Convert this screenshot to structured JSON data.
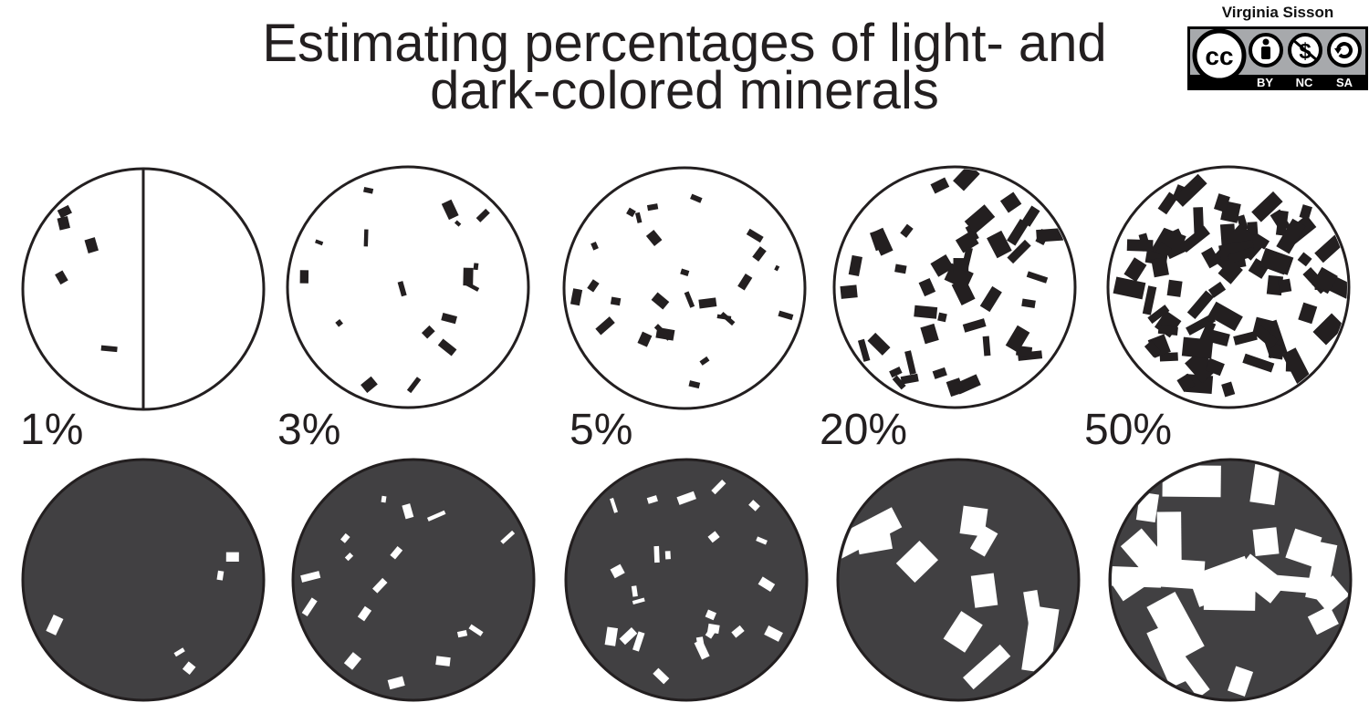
{
  "title": {
    "line1": "Estimating percentages of light- and",
    "line2": "dark-colored minerals"
  },
  "attribution": {
    "author": "Virginia Sisson",
    "license_labels": [
      "BY",
      "NC",
      "SA"
    ],
    "cc_label": "cc"
  },
  "panels": [
    {
      "label": "1%",
      "percent": 1
    },
    {
      "label": "3%",
      "percent": 3
    },
    {
      "label": "5%",
      "percent": 5
    },
    {
      "label": "20%",
      "percent": 20
    },
    {
      "label": "50%",
      "percent": 50
    }
  ],
  "colors": {
    "dark_mineral": "#231f20",
    "dark_background": "#414042",
    "light": "#ffffff",
    "outline": "#231f20",
    "badge_gray": "#a7a9ac"
  }
}
